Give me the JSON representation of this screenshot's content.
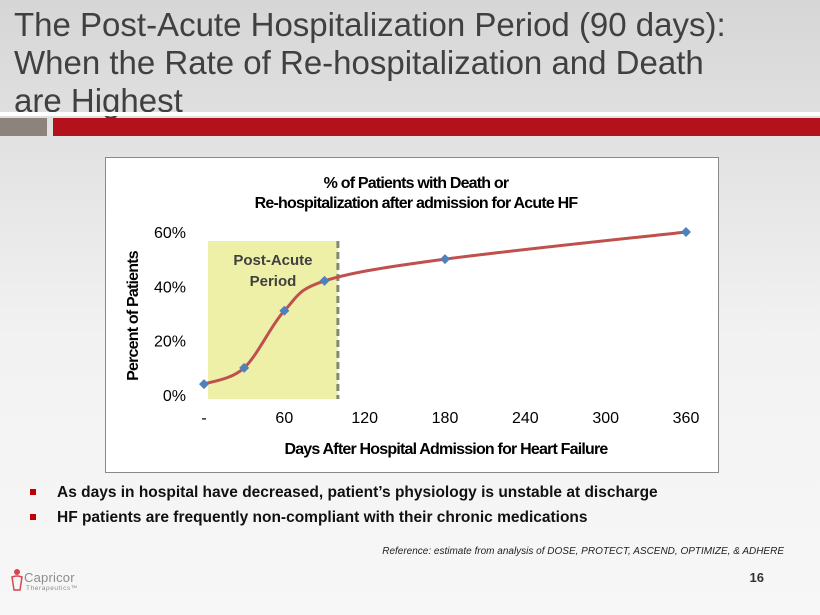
{
  "slide": {
    "title_lines": [
      "The Post-Acute Hospitalization Period (90 days):",
      "When the Rate of Re-hospitalization and Death",
      "are Highest"
    ],
    "bullets": [
      "As days in hospital have decreased, patient’s physiology is unstable at discharge",
      "HF patients are frequently non-compliant with their chronic medications"
    ],
    "reference": "Reference: estimate from analysis of DOSE, PROTECT, ASCEND, OPTIMIZE, & ADHERE",
    "page_number": "16",
    "logo": {
      "name": "Capricor",
      "subtitle": "Therapeutics™"
    },
    "colors": {
      "accent_red": "#b3121c",
      "rule_gray": "#8c847c",
      "bullet_red": "#c00000"
    }
  },
  "chart_data": {
    "type": "line",
    "title_lines": [
      "% of Patients with Death or",
      "Re-hospitalization after admission for Acute HF"
    ],
    "xlabel": "Days After Hospital Admission for Heart Failure",
    "ylabel": "Percent of Patients",
    "xlim": [
      0,
      360
    ],
    "ylim": [
      0,
      0.6
    ],
    "x_ticks": [
      0,
      60,
      120,
      180,
      240,
      300,
      360
    ],
    "x_tick_labels": [
      "-",
      "60",
      "120",
      "180",
      "240",
      "300",
      "360"
    ],
    "y_ticks": [
      0,
      0.2,
      0.4,
      0.6
    ],
    "y_tick_labels": [
      "0%",
      "20%",
      "40%",
      "60%"
    ],
    "grid": false,
    "legend": "none",
    "series": [
      {
        "x": [
          0,
          30,
          60,
          90,
          180,
          360
        ],
        "y": [
          0.04,
          0.1,
          0.31,
          0.42,
          0.5,
          0.6
        ],
        "line_color": "#c0504d",
        "marker_color": "#4f81bd",
        "marker": "diamond",
        "smooth": true
      }
    ],
    "annotations": [
      {
        "type": "shaded_region",
        "x_range": [
          3,
          100
        ],
        "label_lines": [
          "Post-Acute",
          "Period"
        ],
        "fill": "#eef0a8",
        "boundary_style": "dashed",
        "boundary_color": "#7f8a6f"
      }
    ]
  }
}
